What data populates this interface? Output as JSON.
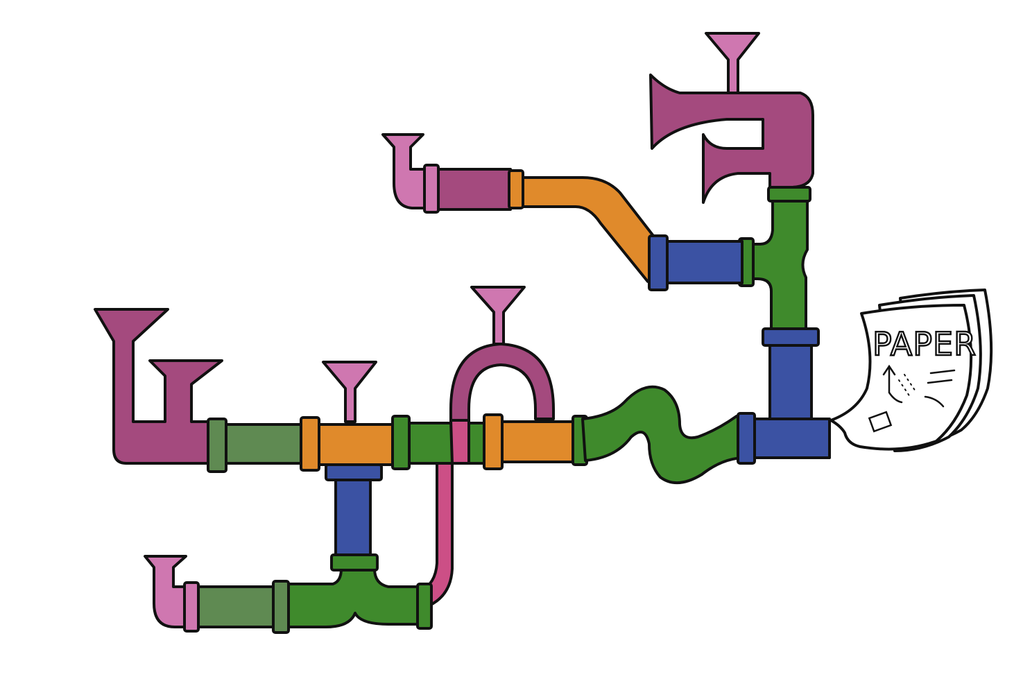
{
  "palette": {
    "purple": "#a44a7e",
    "pink": "#cf77b0",
    "orange": "#e08a2b",
    "green": "#3f8a2c",
    "sage": "#5f8a52",
    "blue": "#3b52a3",
    "magenta": "#cc4f86",
    "outline": "#111111",
    "paper": "#ffffff"
  },
  "paper": {
    "title": "PAPER"
  },
  "icons": {
    "funnel": "funnel-icon",
    "horn": "horn-icon",
    "paper": "paper-icon"
  }
}
